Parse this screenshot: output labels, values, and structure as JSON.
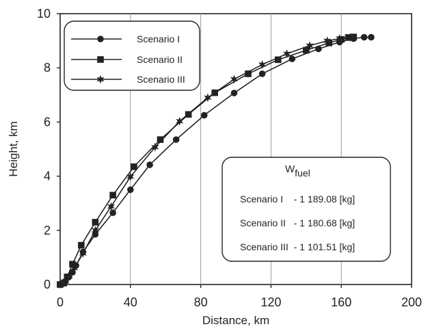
{
  "chart_data": {
    "type": "line",
    "xlabel": "Distance, km",
    "ylabel": "Height, km",
    "xlim": [
      0,
      200
    ],
    "ylim": [
      0,
      10
    ],
    "xticks": [
      0,
      40,
      80,
      120,
      160,
      200
    ],
    "yticks": [
      0,
      2,
      4,
      6,
      8,
      10
    ],
    "grid": "vertical",
    "legend_position": "top-left",
    "series": [
      {
        "name": "Scenario I",
        "marker": "circle",
        "points": [
          [
            0,
            0
          ],
          [
            1.5,
            0.05
          ],
          [
            3,
            0.12
          ],
          [
            5,
            0.28
          ],
          [
            7,
            0.45
          ],
          [
            9,
            0.7
          ],
          [
            13,
            1.2
          ],
          [
            20,
            1.85
          ],
          [
            30,
            2.65
          ],
          [
            40,
            3.5
          ],
          [
            51,
            4.42
          ],
          [
            66,
            5.35
          ],
          [
            82,
            6.25
          ],
          [
            99,
            7.07
          ],
          [
            115,
            7.78
          ],
          [
            132,
            8.33
          ],
          [
            147,
            8.7
          ],
          [
            159,
            8.95
          ],
          [
            167,
            9.08
          ],
          [
            173,
            9.13
          ],
          [
            177,
            9.13
          ]
        ]
      },
      {
        "name": "Scenario II",
        "marker": "square",
        "points": [
          [
            0,
            0
          ],
          [
            2,
            0.05
          ],
          [
            4,
            0.28
          ],
          [
            7,
            0.75
          ],
          [
            12,
            1.45
          ],
          [
            20,
            2.3
          ],
          [
            30,
            3.3
          ],
          [
            42,
            4.35
          ],
          [
            57,
            5.35
          ],
          [
            73,
            6.28
          ],
          [
            88,
            7.08
          ],
          [
            107,
            7.78
          ],
          [
            124,
            8.3
          ],
          [
            140,
            8.65
          ],
          [
            153,
            8.92
          ],
          [
            160,
            9.05
          ],
          [
            164,
            9.12
          ],
          [
            167,
            9.14
          ]
        ]
      },
      {
        "name": "Scenario III",
        "marker": "star",
        "points": [
          [
            0,
            0
          ],
          [
            1.5,
            0.03
          ],
          [
            3,
            0.12
          ],
          [
            5,
            0.3
          ],
          [
            8,
            0.6
          ],
          [
            13,
            1.15
          ],
          [
            20,
            2.0
          ],
          [
            29,
            2.88
          ],
          [
            40,
            3.98
          ],
          [
            54,
            5.07
          ],
          [
            68,
            6.03
          ],
          [
            84,
            6.9
          ],
          [
            99,
            7.58
          ],
          [
            115,
            8.12
          ],
          [
            129,
            8.52
          ],
          [
            142,
            8.82
          ],
          [
            152,
            9.0
          ],
          [
            159,
            9.08
          ],
          [
            165,
            9.12
          ]
        ]
      }
    ],
    "annotation": {
      "title_base": "W",
      "title_sub": "fuel",
      "lines": [
        "Scenario I    - 1 189.08 [kg]",
        "Scenario II   - 1 180.68 [kg]",
        "Scenario III  - 1 101.51 [kg]"
      ]
    }
  }
}
